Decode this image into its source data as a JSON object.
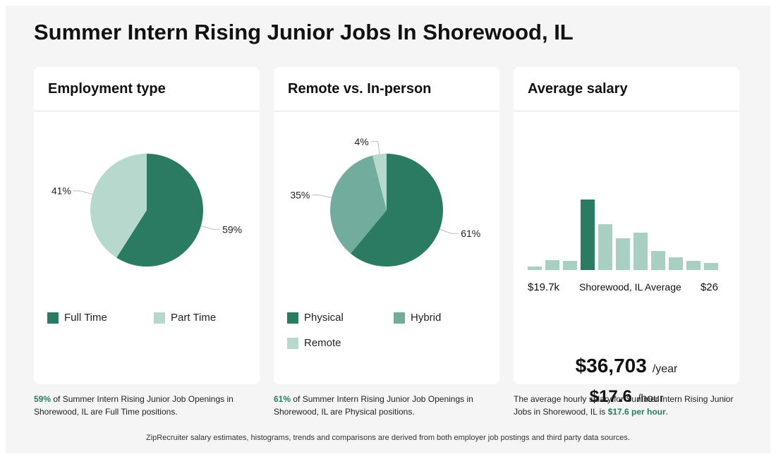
{
  "page": {
    "title": "Summer Intern Rising Junior Jobs In Shorewood, IL"
  },
  "colors": {
    "dark": "#2b7b62",
    "mid": "#72ac9c",
    "light": "#b7d8cd",
    "muted": "#a9cfc2"
  },
  "cards": {
    "employment": {
      "title": "Employment type",
      "legend": [
        "Full Time",
        "Part Time"
      ],
      "caption": {
        "pct": "59%",
        "text": " of Summer Intern Rising Junior Job Openings in Shorewood, IL are Full Time positions."
      }
    },
    "remote": {
      "title": "Remote vs. In-person",
      "legend": [
        "Physical",
        "Hybrid",
        "Remote"
      ],
      "caption": {
        "pct": "61%",
        "text": " of Summer Intern Rising Junior Job Openings in Shorewood, IL are Physical positions."
      }
    },
    "salary": {
      "title": "Average salary",
      "low_label": "$19.7k",
      "mid_label": "Shorewood, IL Average",
      "high_label": "$26",
      "yearly": "$36,703",
      "yearly_unit": "/year",
      "hourly": "$17.6",
      "hourly_unit": "/hour",
      "caption": {
        "text": "The average hourly salary for Summer Intern Rising Junior Jobs in Shorewood, IL is ",
        "value": "$17.6 per hour",
        "end": "."
      }
    }
  },
  "footer": "ZipRecruiter salary estimates, histograms, trends and comparisons are derived from both employer job postings and third party data sources.",
  "chart_data": [
    {
      "type": "pie",
      "title": "Employment type",
      "categories": [
        "Full Time",
        "Part Time"
      ],
      "values": [
        59,
        41
      ],
      "labels": [
        "59%",
        "41%"
      ]
    },
    {
      "type": "pie",
      "title": "Remote vs. In-person",
      "categories": [
        "Physical",
        "Hybrid",
        "Remote"
      ],
      "values": [
        61,
        35,
        4
      ],
      "labels": [
        "61%",
        "35%",
        "4%"
      ]
    },
    {
      "type": "bar",
      "title": "Average salary",
      "values": [
        5,
        14,
        13,
        100,
        65,
        45,
        53,
        27,
        18,
        13,
        10
      ],
      "highlight_index": 3,
      "xlabel_left": "$19.7k",
      "xlabel_right": "$26"
    }
  ]
}
